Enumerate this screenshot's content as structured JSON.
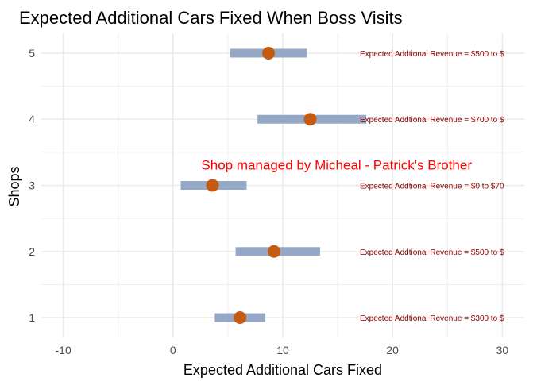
{
  "chart_data": {
    "type": "dot-interval",
    "title": "Expected Additional Cars Fixed When Boss Visits",
    "xlabel": "Expected Additional Cars Fixed",
    "ylabel": "Shops",
    "xlim": [
      -12,
      32
    ],
    "ylim": [
      0.7,
      5.3
    ],
    "x_ticks": [
      -10,
      0,
      10,
      20,
      30
    ],
    "x_tick_labels": [
      "-10",
      "0",
      "10",
      "20",
      "30"
    ],
    "y_ticks": [
      1,
      2,
      3,
      4,
      5
    ],
    "y_tick_labels": [
      "1",
      "2",
      "3",
      "4",
      "5"
    ],
    "grid": true,
    "shops": [
      {
        "shop": 1,
        "estimate": 6.1,
        "lower": 3.8,
        "upper": 8.4,
        "revenue_label": "Expected Addtional Revenue = $300 to $"
      },
      {
        "shop": 2,
        "estimate": 9.2,
        "lower": 5.7,
        "upper": 13.4,
        "revenue_label": "Expected Addtional Revenue = $500 to $"
      },
      {
        "shop": 3,
        "estimate": 3.6,
        "lower": 0.7,
        "upper": 6.7,
        "revenue_label": "Expected Addtional Revenue = $0 to $70"
      },
      {
        "shop": 4,
        "estimate": 12.5,
        "lower": 7.7,
        "upper": 17.6,
        "revenue_label": "Expected Addtional Revenue = $700 to $"
      },
      {
        "shop": 5,
        "estimate": 8.7,
        "lower": 5.2,
        "upper": 12.2,
        "revenue_label": "Expected Addtional Revenue = $500 to $"
      }
    ],
    "annotation": {
      "text": "Shop managed by Micheal - Patrick's Brother",
      "x": 14.9,
      "y": 3.24
    },
    "colors": {
      "interval": "#95a9c7",
      "point": "#c55a11",
      "revenue_text": "#8b0000",
      "annotation": "#ff0000",
      "grid": "#ebebeb"
    }
  }
}
